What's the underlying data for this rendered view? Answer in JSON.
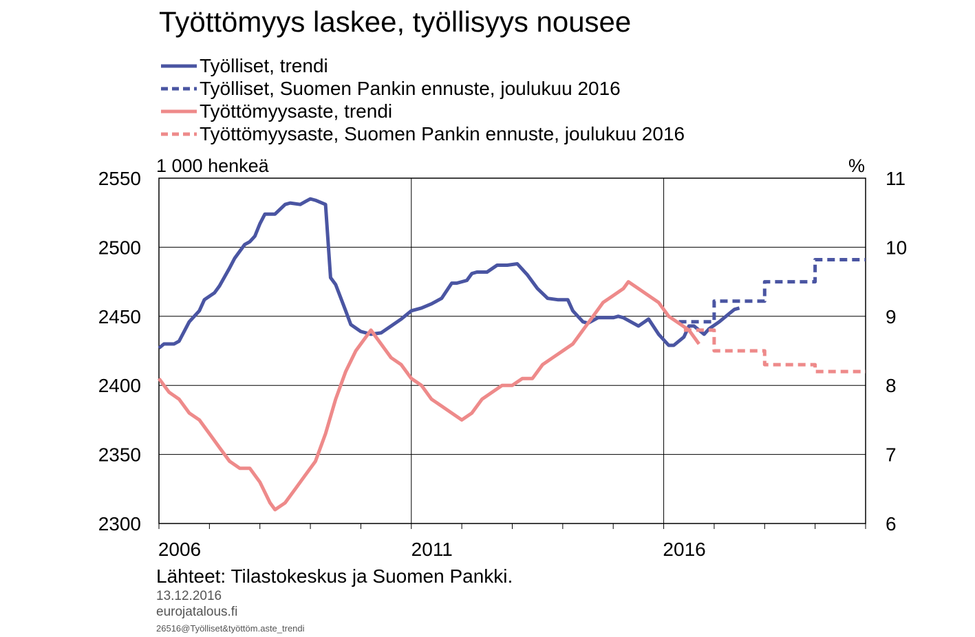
{
  "title": "Työttömyys laskee, työllisyys nousee",
  "legend": [
    {
      "label": "Työlliset, trendi",
      "color": "#4a55a2",
      "style": "solid"
    },
    {
      "label": "Työlliset, Suomen Pankin ennuste, joulukuu 2016",
      "color": "#4a55a2",
      "style": "dashed"
    },
    {
      "label": "Työttömyysaste, trendi",
      "color": "#ee8a8a",
      "style": "solid"
    },
    {
      "label": "Työttömyysaste, Suomen Pankin ennuste, joulukuu 2016",
      "color": "#ee8a8a",
      "style": "dashed"
    }
  ],
  "unit_left": "1 000 henkeä",
  "unit_right": "%",
  "footer": {
    "source": "Lähteet: Tilastokeskus  ja Suomen Pankki.",
    "date": "13.12.2016",
    "site": "eurojatalous.fi",
    "code": "26516@Työlliset&työttöm.aste_trendi"
  },
  "chart_data": {
    "type": "line",
    "xlim": [
      2006,
      2020
    ],
    "x_ticks": [
      2006,
      2011,
      2016
    ],
    "y_left": {
      "label": "1 000 henkeä",
      "range": [
        2300,
        2550
      ],
      "ticks": [
        2300,
        2350,
        2400,
        2450,
        2500,
        2550
      ]
    },
    "y_right": {
      "label": "%",
      "range": [
        6,
        11
      ],
      "ticks": [
        6,
        7,
        8,
        9,
        10,
        11
      ]
    },
    "grid": true,
    "series": [
      {
        "name": "Työlliset, trendi",
        "axis": "left",
        "color": "#4a55a2",
        "style": "solid",
        "points": [
          [
            2006.0,
            2427
          ],
          [
            2006.1,
            2430
          ],
          [
            2006.3,
            2430
          ],
          [
            2006.4,
            2432
          ],
          [
            2006.6,
            2446
          ],
          [
            2006.8,
            2454
          ],
          [
            2006.9,
            2462
          ],
          [
            2007.1,
            2467
          ],
          [
            2007.2,
            2472
          ],
          [
            2007.4,
            2485
          ],
          [
            2007.5,
            2492
          ],
          [
            2007.7,
            2502
          ],
          [
            2007.8,
            2504
          ],
          [
            2007.9,
            2508
          ],
          [
            2008.0,
            2517
          ],
          [
            2008.1,
            2524
          ],
          [
            2008.3,
            2524
          ],
          [
            2008.5,
            2531
          ],
          [
            2008.6,
            2532
          ],
          [
            2008.8,
            2531
          ],
          [
            2008.9,
            2533
          ],
          [
            2009.0,
            2535
          ],
          [
            2009.1,
            2534
          ],
          [
            2009.3,
            2531
          ],
          [
            2009.4,
            2478
          ],
          [
            2009.5,
            2473
          ],
          [
            2009.7,
            2454
          ],
          [
            2009.8,
            2444
          ],
          [
            2010.0,
            2439
          ],
          [
            2010.2,
            2437
          ],
          [
            2010.4,
            2438
          ],
          [
            2010.6,
            2443
          ],
          [
            2010.8,
            2448
          ],
          [
            2011.0,
            2454
          ],
          [
            2011.2,
            2456
          ],
          [
            2011.4,
            2459
          ],
          [
            2011.6,
            2463
          ],
          [
            2011.8,
            2474
          ],
          [
            2011.9,
            2474
          ],
          [
            2012.1,
            2476
          ],
          [
            2012.2,
            2481
          ],
          [
            2012.3,
            2482
          ],
          [
            2012.5,
            2482
          ],
          [
            2012.7,
            2487
          ],
          [
            2012.9,
            2487
          ],
          [
            2013.1,
            2488
          ],
          [
            2013.3,
            2480
          ],
          [
            2013.5,
            2470
          ],
          [
            2013.7,
            2463
          ],
          [
            2013.9,
            2462
          ],
          [
            2014.1,
            2462
          ],
          [
            2014.2,
            2454
          ],
          [
            2014.4,
            2446
          ],
          [
            2014.5,
            2445
          ],
          [
            2014.7,
            2449
          ],
          [
            2014.9,
            2449
          ],
          [
            2015.0,
            2449
          ],
          [
            2015.1,
            2450
          ],
          [
            2015.2,
            2449
          ],
          [
            2015.3,
            2447
          ],
          [
            2015.5,
            2443
          ],
          [
            2015.7,
            2448
          ],
          [
            2015.9,
            2437
          ],
          [
            2016.1,
            2429
          ],
          [
            2016.2,
            2429
          ],
          [
            2016.4,
            2435
          ],
          [
            2016.5,
            2443
          ],
          [
            2016.6,
            2443
          ],
          [
            2016.8,
            2437
          ],
          [
            2016.9,
            2441
          ],
          [
            2017.1,
            2446
          ],
          [
            2017.3,
            2452
          ],
          [
            2017.4,
            2455
          ],
          [
            2017.5,
            2456
          ]
        ]
      },
      {
        "name": "Työlliset, Suomen Pankin ennuste, joulukuu 2016",
        "axis": "left",
        "color": "#4a55a2",
        "style": "dashed",
        "points": [
          [
            2016.3,
            2446
          ],
          [
            2017.0,
            2446
          ],
          [
            2017.0,
            2461
          ],
          [
            2018.0,
            2461
          ],
          [
            2018.0,
            2475
          ],
          [
            2019.0,
            2475
          ],
          [
            2019.0,
            2491
          ],
          [
            2020.0,
            2491
          ]
        ]
      },
      {
        "name": "Työttömyysaste, trendi",
        "axis": "right",
        "color": "#ee8a8a",
        "style": "solid",
        "points": [
          [
            2006.0,
            8.1
          ],
          [
            2006.1,
            8.0
          ],
          [
            2006.2,
            7.9
          ],
          [
            2006.4,
            7.8
          ],
          [
            2006.6,
            7.6
          ],
          [
            2006.8,
            7.5
          ],
          [
            2007.0,
            7.3
          ],
          [
            2007.2,
            7.1
          ],
          [
            2007.4,
            6.9
          ],
          [
            2007.6,
            6.8
          ],
          [
            2007.8,
            6.8
          ],
          [
            2008.0,
            6.6
          ],
          [
            2008.2,
            6.3
          ],
          [
            2008.3,
            6.2
          ],
          [
            2008.5,
            6.3
          ],
          [
            2008.7,
            6.5
          ],
          [
            2008.9,
            6.7
          ],
          [
            2009.1,
            6.9
          ],
          [
            2009.3,
            7.3
          ],
          [
            2009.5,
            7.8
          ],
          [
            2009.7,
            8.2
          ],
          [
            2009.9,
            8.5
          ],
          [
            2010.2,
            8.8
          ],
          [
            2010.4,
            8.6
          ],
          [
            2010.6,
            8.4
          ],
          [
            2010.8,
            8.3
          ],
          [
            2011.0,
            8.1
          ],
          [
            2011.2,
            8.0
          ],
          [
            2011.4,
            7.8
          ],
          [
            2011.6,
            7.7
          ],
          [
            2011.8,
            7.6
          ],
          [
            2012.0,
            7.5
          ],
          [
            2012.2,
            7.6
          ],
          [
            2012.4,
            7.8
          ],
          [
            2012.6,
            7.9
          ],
          [
            2012.8,
            8.0
          ],
          [
            2013.0,
            8.0
          ],
          [
            2013.2,
            8.1
          ],
          [
            2013.4,
            8.1
          ],
          [
            2013.6,
            8.3
          ],
          [
            2013.8,
            8.4
          ],
          [
            2014.0,
            8.5
          ],
          [
            2014.2,
            8.6
          ],
          [
            2014.4,
            8.8
          ],
          [
            2014.6,
            9.0
          ],
          [
            2014.8,
            9.2
          ],
          [
            2015.0,
            9.3
          ],
          [
            2015.2,
            9.4
          ],
          [
            2015.3,
            9.5
          ],
          [
            2015.5,
            9.4
          ],
          [
            2015.7,
            9.3
          ],
          [
            2015.9,
            9.2
          ],
          [
            2016.1,
            9.0
          ],
          [
            2016.3,
            8.9
          ],
          [
            2016.5,
            8.8
          ],
          [
            2016.7,
            8.6
          ]
        ]
      },
      {
        "name": "Työttömyysaste, Suomen Pankin ennuste, joulukuu 2016",
        "axis": "right",
        "color": "#ee8a8a",
        "style": "dashed",
        "points": [
          [
            2016.4,
            8.8
          ],
          [
            2017.0,
            8.8
          ],
          [
            2017.0,
            8.5
          ],
          [
            2018.0,
            8.5
          ],
          [
            2018.0,
            8.3
          ],
          [
            2019.0,
            8.3
          ],
          [
            2019.0,
            8.2
          ],
          [
            2020.0,
            8.2
          ]
        ]
      }
    ]
  }
}
